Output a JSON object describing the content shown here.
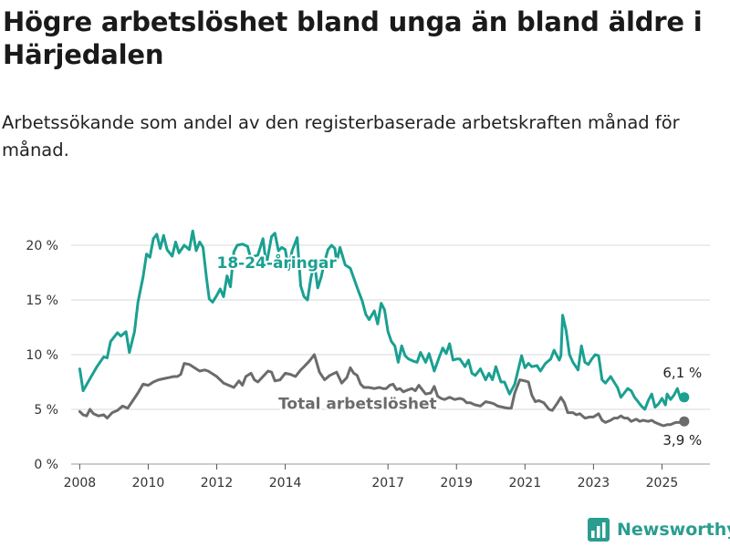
{
  "title": "Högre arbetslöshet bland unga än bland äldre i Härjedalen",
  "subtitle": "Arbetssökande som andel av den registerbaserade arbetskraften månad för månad.",
  "brand": {
    "name": "Newsworthy",
    "color": "#2a9d8f"
  },
  "colors": {
    "young": "#1aa091",
    "total": "#6b6b6b",
    "grid": "#d9d9d9"
  },
  "chart_data": {
    "type": "line",
    "ylim": [
      0,
      22
    ],
    "yticks": [
      0,
      5,
      10,
      15,
      20
    ],
    "ytick_labels": [
      "0 %",
      "5 %",
      "10 %",
      "15 %",
      "20 %"
    ],
    "xlim": [
      2007.75,
      2026.4
    ],
    "xticks": [
      2008,
      2010,
      2012,
      2014,
      2017,
      2019,
      2021,
      2023,
      2025
    ],
    "xtick_labels": [
      "2008",
      "2010",
      "2012",
      "2014",
      "2017",
      "2019",
      "2021",
      "2023",
      "2025"
    ],
    "grid": true,
    "series": [
      {
        "name": "18-24-åringar",
        "label_at": [
          2012.0,
          17.9
        ],
        "end_label": "6,1 %",
        "points": [
          [
            2008.0,
            8.7
          ],
          [
            2008.1,
            6.7
          ],
          [
            2008.3,
            7.8
          ],
          [
            2008.5,
            8.9
          ],
          [
            2008.7,
            9.8
          ],
          [
            2008.8,
            9.7
          ],
          [
            2008.9,
            11.2
          ],
          [
            2009.1,
            12.0
          ],
          [
            2009.2,
            11.7
          ],
          [
            2009.35,
            12.1
          ],
          [
            2009.45,
            10.2
          ],
          [
            2009.6,
            12.1
          ],
          [
            2009.7,
            14.8
          ],
          [
            2009.85,
            17.1
          ],
          [
            2009.95,
            19.2
          ],
          [
            2010.05,
            18.9
          ],
          [
            2010.15,
            20.6
          ],
          [
            2010.25,
            21.0
          ],
          [
            2010.35,
            19.7
          ],
          [
            2010.45,
            20.9
          ],
          [
            2010.55,
            19.6
          ],
          [
            2010.7,
            19.0
          ],
          [
            2010.8,
            20.3
          ],
          [
            2010.9,
            19.3
          ],
          [
            2011.05,
            20.0
          ],
          [
            2011.2,
            19.6
          ],
          [
            2011.3,
            21.3
          ],
          [
            2011.4,
            19.5
          ],
          [
            2011.5,
            20.3
          ],
          [
            2011.6,
            19.8
          ],
          [
            2011.7,
            17.0
          ],
          [
            2011.78,
            15.1
          ],
          [
            2011.88,
            14.8
          ],
          [
            2012.0,
            15.4
          ],
          [
            2012.1,
            16.0
          ],
          [
            2012.2,
            15.3
          ],
          [
            2012.3,
            17.2
          ],
          [
            2012.4,
            16.2
          ],
          [
            2012.5,
            19.4
          ],
          [
            2012.6,
            20.0
          ],
          [
            2012.75,
            20.1
          ],
          [
            2012.9,
            19.9
          ],
          [
            2013.0,
            18.7
          ],
          [
            2013.1,
            19.0
          ],
          [
            2013.2,
            19.1
          ],
          [
            2013.35,
            20.6
          ],
          [
            2013.45,
            18.2
          ],
          [
            2013.6,
            20.8
          ],
          [
            2013.7,
            21.1
          ],
          [
            2013.8,
            19.5
          ],
          [
            2013.9,
            19.8
          ],
          [
            2014.0,
            19.6
          ],
          [
            2014.1,
            17.8
          ],
          [
            2014.2,
            19.5
          ],
          [
            2014.35,
            20.7
          ],
          [
            2014.45,
            16.3
          ],
          [
            2014.55,
            15.3
          ],
          [
            2014.65,
            15.0
          ],
          [
            2014.75,
            17.0
          ],
          [
            2014.85,
            18.4
          ],
          [
            2014.95,
            16.1
          ],
          [
            2015.05,
            17.1
          ],
          [
            2015.15,
            18.5
          ],
          [
            2015.25,
            19.6
          ],
          [
            2015.35,
            20.0
          ],
          [
            2015.45,
            19.7
          ],
          [
            2015.5,
            18.5
          ],
          [
            2015.6,
            19.8
          ],
          [
            2015.75,
            18.2
          ],
          [
            2015.9,
            17.9
          ],
          [
            2016.0,
            17.0
          ],
          [
            2016.15,
            15.7
          ],
          [
            2016.25,
            14.9
          ],
          [
            2016.35,
            13.7
          ],
          [
            2016.45,
            13.2
          ],
          [
            2016.6,
            14.0
          ],
          [
            2016.7,
            12.8
          ],
          [
            2016.8,
            14.7
          ],
          [
            2016.9,
            14.1
          ],
          [
            2017.0,
            12.1
          ],
          [
            2017.1,
            11.2
          ],
          [
            2017.2,
            10.8
          ],
          [
            2017.3,
            9.3
          ],
          [
            2017.4,
            10.8
          ],
          [
            2017.5,
            9.9
          ],
          [
            2017.6,
            9.6
          ],
          [
            2017.75,
            9.4
          ],
          [
            2017.85,
            9.3
          ],
          [
            2017.95,
            10.2
          ],
          [
            2018.1,
            9.3
          ],
          [
            2018.2,
            10.1
          ],
          [
            2018.35,
            8.5
          ],
          [
            2018.5,
            9.8
          ],
          [
            2018.6,
            10.6
          ],
          [
            2018.7,
            10.1
          ],
          [
            2018.8,
            11.0
          ],
          [
            2018.9,
            9.5
          ],
          [
            2019.0,
            9.6
          ],
          [
            2019.1,
            9.6
          ],
          [
            2019.25,
            8.9
          ],
          [
            2019.35,
            9.5
          ],
          [
            2019.45,
            8.3
          ],
          [
            2019.55,
            8.1
          ],
          [
            2019.7,
            8.7
          ],
          [
            2019.85,
            7.7
          ],
          [
            2019.95,
            8.3
          ],
          [
            2020.05,
            7.7
          ],
          [
            2020.15,
            8.9
          ],
          [
            2020.3,
            7.5
          ],
          [
            2020.4,
            7.5
          ],
          [
            2020.55,
            6.4
          ],
          [
            2020.7,
            7.3
          ],
          [
            2020.9,
            9.9
          ],
          [
            2021.0,
            8.8
          ],
          [
            2021.1,
            9.2
          ],
          [
            2021.2,
            8.9
          ],
          [
            2021.35,
            9.0
          ],
          [
            2021.45,
            8.5
          ],
          [
            2021.6,
            9.2
          ],
          [
            2021.75,
            9.6
          ],
          [
            2021.85,
            10.4
          ],
          [
            2022.0,
            9.5
          ],
          [
            2022.05,
            9.9
          ],
          [
            2022.1,
            13.6
          ],
          [
            2022.2,
            12.2
          ],
          [
            2022.3,
            10.0
          ],
          [
            2022.4,
            9.3
          ],
          [
            2022.55,
            8.6
          ],
          [
            2022.65,
            10.8
          ],
          [
            2022.75,
            9.3
          ],
          [
            2022.85,
            9.1
          ],
          [
            2022.95,
            9.6
          ],
          [
            2023.05,
            10.0
          ],
          [
            2023.15,
            9.9
          ],
          [
            2023.25,
            7.7
          ],
          [
            2023.35,
            7.4
          ],
          [
            2023.5,
            8.0
          ],
          [
            2023.6,
            7.5
          ],
          [
            2023.7,
            7.0
          ],
          [
            2023.8,
            6.1
          ],
          [
            2023.9,
            6.5
          ],
          [
            2024.0,
            6.9
          ],
          [
            2024.1,
            6.7
          ],
          [
            2024.2,
            6.1
          ],
          [
            2024.3,
            5.7
          ],
          [
            2024.4,
            5.3
          ],
          [
            2024.5,
            5.0
          ],
          [
            2024.6,
            5.8
          ],
          [
            2024.7,
            6.4
          ],
          [
            2024.8,
            5.2
          ],
          [
            2024.9,
            5.5
          ],
          [
            2025.0,
            6.0
          ],
          [
            2025.1,
            5.4
          ],
          [
            2025.15,
            6.4
          ],
          [
            2025.25,
            5.9
          ],
          [
            2025.35,
            6.3
          ],
          [
            2025.45,
            6.9
          ],
          [
            2025.55,
            5.9
          ],
          [
            2025.65,
            6.1
          ]
        ]
      },
      {
        "name": "Total arbetslöshet",
        "label_at": [
          2013.8,
          5.05
        ],
        "end_label": "3,9 %",
        "points": [
          [
            2008.0,
            4.8
          ],
          [
            2008.1,
            4.5
          ],
          [
            2008.2,
            4.4
          ],
          [
            2008.3,
            5.0
          ],
          [
            2008.4,
            4.6
          ],
          [
            2008.55,
            4.4
          ],
          [
            2008.7,
            4.5
          ],
          [
            2008.8,
            4.2
          ],
          [
            2008.95,
            4.7
          ],
          [
            2009.1,
            4.9
          ],
          [
            2009.25,
            5.3
          ],
          [
            2009.4,
            5.1
          ],
          [
            2009.55,
            5.8
          ],
          [
            2009.7,
            6.5
          ],
          [
            2009.85,
            7.3
          ],
          [
            2010.0,
            7.2
          ],
          [
            2010.15,
            7.5
          ],
          [
            2010.3,
            7.7
          ],
          [
            2010.45,
            7.8
          ],
          [
            2010.6,
            7.9
          ],
          [
            2010.75,
            8.0
          ],
          [
            2010.85,
            8.0
          ],
          [
            2010.95,
            8.2
          ],
          [
            2011.05,
            9.2
          ],
          [
            2011.2,
            9.1
          ],
          [
            2011.35,
            8.8
          ],
          [
            2011.5,
            8.5
          ],
          [
            2011.65,
            8.6
          ],
          [
            2011.75,
            8.5
          ],
          [
            2011.85,
            8.3
          ],
          [
            2012.0,
            8.0
          ],
          [
            2012.1,
            7.7
          ],
          [
            2012.2,
            7.4
          ],
          [
            2012.35,
            7.2
          ],
          [
            2012.5,
            7.0
          ],
          [
            2012.65,
            7.6
          ],
          [
            2012.75,
            7.2
          ],
          [
            2012.85,
            8.0
          ],
          [
            2013.0,
            8.3
          ],
          [
            2013.1,
            7.7
          ],
          [
            2013.2,
            7.5
          ],
          [
            2013.35,
            8.0
          ],
          [
            2013.5,
            8.5
          ],
          [
            2013.6,
            8.4
          ],
          [
            2013.7,
            7.6
          ],
          [
            2013.85,
            7.7
          ],
          [
            2014.0,
            8.3
          ],
          [
            2014.15,
            8.2
          ],
          [
            2014.3,
            8.0
          ],
          [
            2014.45,
            8.6
          ],
          [
            2014.55,
            8.9
          ],
          [
            2014.7,
            9.4
          ],
          [
            2014.85,
            10.0
          ],
          [
            2015.0,
            8.4
          ],
          [
            2015.15,
            7.7
          ],
          [
            2015.3,
            8.1
          ],
          [
            2015.5,
            8.4
          ],
          [
            2015.65,
            7.4
          ],
          [
            2015.8,
            7.9
          ],
          [
            2015.9,
            8.8
          ],
          [
            2016.0,
            8.3
          ],
          [
            2016.1,
            8.1
          ],
          [
            2016.2,
            7.3
          ],
          [
            2016.3,
            7.0
          ],
          [
            2016.45,
            7.0
          ],
          [
            2016.6,
            6.9
          ],
          [
            2016.75,
            7.0
          ],
          [
            2016.85,
            6.9
          ],
          [
            2016.95,
            6.9
          ],
          [
            2017.05,
            7.2
          ],
          [
            2017.15,
            7.3
          ],
          [
            2017.25,
            6.8
          ],
          [
            2017.35,
            6.9
          ],
          [
            2017.45,
            6.6
          ],
          [
            2017.6,
            6.8
          ],
          [
            2017.7,
            6.9
          ],
          [
            2017.8,
            6.7
          ],
          [
            2017.9,
            7.2
          ],
          [
            2018.0,
            6.8
          ],
          [
            2018.1,
            6.4
          ],
          [
            2018.25,
            6.5
          ],
          [
            2018.35,
            7.1
          ],
          [
            2018.45,
            6.2
          ],
          [
            2018.55,
            6.0
          ],
          [
            2018.65,
            5.9
          ],
          [
            2018.8,
            6.1
          ],
          [
            2018.95,
            5.9
          ],
          [
            2019.1,
            6.0
          ],
          [
            2019.2,
            5.9
          ],
          [
            2019.3,
            5.6
          ],
          [
            2019.4,
            5.6
          ],
          [
            2019.55,
            5.4
          ],
          [
            2019.7,
            5.3
          ],
          [
            2019.85,
            5.7
          ],
          [
            2020.0,
            5.6
          ],
          [
            2020.1,
            5.5
          ],
          [
            2020.2,
            5.3
          ],
          [
            2020.35,
            5.2
          ],
          [
            2020.5,
            5.1
          ],
          [
            2020.6,
            5.1
          ],
          [
            2020.7,
            6.5
          ],
          [
            2020.85,
            7.7
          ],
          [
            2021.0,
            7.6
          ],
          [
            2021.1,
            7.5
          ],
          [
            2021.2,
            6.3
          ],
          [
            2021.3,
            5.7
          ],
          [
            2021.4,
            5.8
          ],
          [
            2021.55,
            5.6
          ],
          [
            2021.7,
            5.0
          ],
          [
            2021.8,
            4.9
          ],
          [
            2021.95,
            5.6
          ],
          [
            2022.05,
            6.1
          ],
          [
            2022.15,
            5.6
          ],
          [
            2022.25,
            4.7
          ],
          [
            2022.4,
            4.7
          ],
          [
            2022.5,
            4.5
          ],
          [
            2022.6,
            4.6
          ],
          [
            2022.75,
            4.2
          ],
          [
            2022.9,
            4.3
          ],
          [
            2023.0,
            4.3
          ],
          [
            2023.15,
            4.6
          ],
          [
            2023.25,
            4.0
          ],
          [
            2023.35,
            3.8
          ],
          [
            2023.5,
            4.0
          ],
          [
            2023.6,
            4.2
          ],
          [
            2023.7,
            4.2
          ],
          [
            2023.8,
            4.4
          ],
          [
            2023.9,
            4.2
          ],
          [
            2024.0,
            4.2
          ],
          [
            2024.1,
            3.9
          ],
          [
            2024.25,
            4.1
          ],
          [
            2024.35,
            3.9
          ],
          [
            2024.45,
            4.0
          ],
          [
            2024.6,
            3.9
          ],
          [
            2024.7,
            4.0
          ],
          [
            2024.8,
            3.8
          ],
          [
            2024.95,
            3.6
          ],
          [
            2025.05,
            3.5
          ],
          [
            2025.15,
            3.6
          ],
          [
            2025.25,
            3.6
          ],
          [
            2025.4,
            3.8
          ],
          [
            2025.55,
            3.8
          ],
          [
            2025.65,
            3.9
          ]
        ]
      }
    ]
  }
}
